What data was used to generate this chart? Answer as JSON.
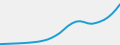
{
  "x": [
    0,
    1,
    2,
    3,
    4,
    5,
    6,
    7,
    8,
    9,
    10,
    11,
    12,
    13,
    14,
    15,
    16,
    17,
    18,
    19,
    20,
    21,
    22,
    23,
    24,
    25,
    26,
    27,
    28,
    29,
    30
  ],
  "y": [
    1,
    1.2,
    1.4,
    1.6,
    1.8,
    2.0,
    2.3,
    2.6,
    3.0,
    3.5,
    4.2,
    5.2,
    6.5,
    8.5,
    11,
    14,
    18,
    22,
    25,
    27,
    27.5,
    26.5,
    25,
    24.5,
    25.5,
    27,
    29,
    32,
    36,
    41,
    47
  ],
  "line_color": "#1a9ed4",
  "linewidth": 1.4,
  "background_color": "#f0f0f0",
  "xlim": [
    0,
    30
  ],
  "ylim": [
    0,
    52
  ]
}
